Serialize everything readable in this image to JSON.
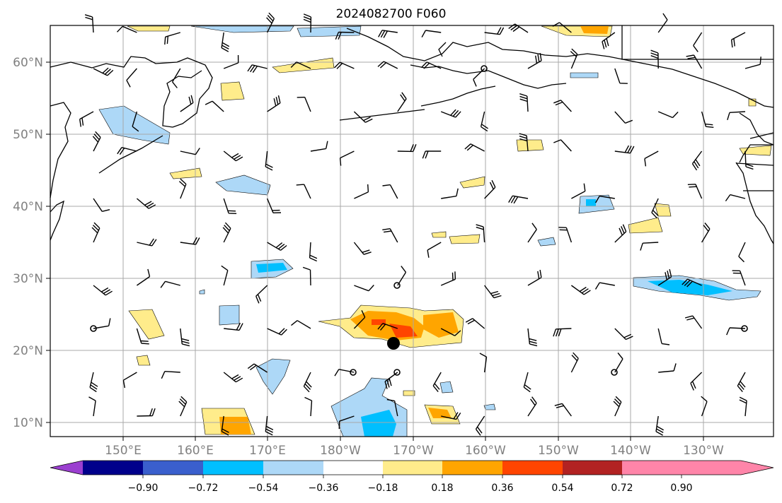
{
  "title": "2024082700 F060",
  "map": {
    "lon_labels": [
      "150°E",
      "160°E",
      "170°E",
      "180°W",
      "170°W",
      "160°W",
      "150°W",
      "140°W",
      "130°W"
    ],
    "lat_labels": [
      "60°N",
      "50°N",
      "40°N",
      "30°N",
      "20°N",
      "10°N"
    ],
    "grid": true
  },
  "colorbar": {
    "ticks": [
      "−0.90",
      "−0.72",
      "−0.54",
      "−0.36",
      "−0.18",
      "0.18",
      "0.36",
      "0.54",
      "0.72",
      "0.90"
    ],
    "colors": [
      "#9b3fd0",
      "#00008b",
      "#3a5fcd",
      "#00bfff",
      "#add8f7",
      "#ffffff",
      "#ffec8b",
      "#ffa500",
      "#ff4500",
      "#b22222",
      "#ff85a9"
    ]
  },
  "marker": {
    "label": "storm-center",
    "color": "#000000"
  }
}
